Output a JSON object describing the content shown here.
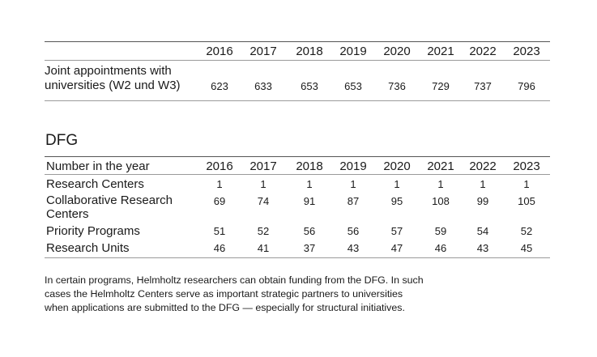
{
  "years": [
    "2016",
    "2017",
    "2018",
    "2019",
    "2020",
    "2021",
    "2022",
    "2023"
  ],
  "joint": {
    "label_line1": "Joint appointments with",
    "label_line2": "universities (W2 und W3)",
    "values": [
      "623",
      "633",
      "653",
      "653",
      "736",
      "729",
      "737",
      "796"
    ]
  },
  "dfg": {
    "title": "DFG",
    "header_label": "Number in the year",
    "rows": [
      {
        "label": "Research Centers",
        "values": [
          "1",
          "1",
          "1",
          "1",
          "1",
          "1",
          "1",
          "1"
        ]
      },
      {
        "label_line1": "Collaborative Research",
        "label_line2": "Centers",
        "values": [
          "69",
          "74",
          "91",
          "87",
          "95",
          "108",
          "99",
          "105"
        ]
      },
      {
        "label": "Priority Programs",
        "values": [
          "51",
          "52",
          "56",
          "56",
          "57",
          "59",
          "54",
          "52"
        ]
      },
      {
        "label": "Research Units",
        "values": [
          "46",
          "41",
          "37",
          "43",
          "47",
          "46",
          "43",
          "45"
        ]
      }
    ]
  },
  "note": {
    "line1": "In certain programs, Helmholtz researchers can obtain funding from the DFG. In such",
    "line2": "cases the Helmholtz Centers serve as important strategic partners to universities",
    "line3": "when applications are submitted to the DFG — especially for structural initiatives."
  }
}
